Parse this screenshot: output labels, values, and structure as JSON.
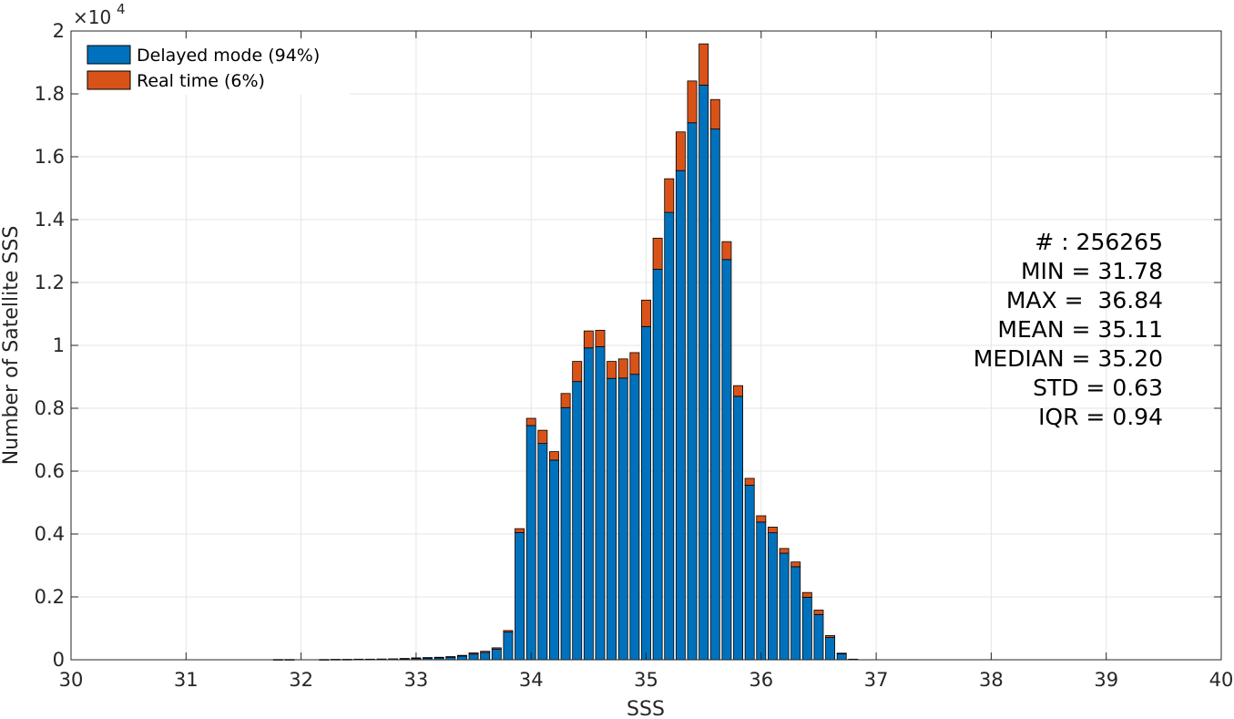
{
  "chart_data": {
    "type": "bar",
    "stacked": true,
    "xlabel": "SSS",
    "ylabel": "Number of Satellite SSS",
    "xlim": [
      30,
      40
    ],
    "ylim": [
      0,
      20000
    ],
    "x_ticks": [
      "30",
      "31",
      "32",
      "33",
      "34",
      "35",
      "36",
      "37",
      "38",
      "39",
      "40"
    ],
    "y_ticks": [
      "0",
      "0.2",
      "0.4",
      "0.6",
      "0.8",
      "1",
      "1.2",
      "1.4",
      "1.6",
      "1.8",
      "2"
    ],
    "y_exponent": {
      "base": "×10",
      "power": "4"
    },
    "grid": true,
    "bin_width": 0.1,
    "legend_position": "top-left",
    "x": [
      31.8,
      31.9,
      32.2,
      32.3,
      32.4,
      32.5,
      32.6,
      32.7,
      32.8,
      32.9,
      33.0,
      33.1,
      33.2,
      33.3,
      33.4,
      33.5,
      33.6,
      33.7,
      33.8,
      33.9,
      34.0,
      34.1,
      34.2,
      34.3,
      34.4,
      34.5,
      34.6,
      34.7,
      34.8,
      34.9,
      35.0,
      35.1,
      35.2,
      35.3,
      35.4,
      35.5,
      35.6,
      35.7,
      35.8,
      35.9,
      36.0,
      36.1,
      36.2,
      36.3,
      36.4,
      36.5,
      36.6,
      36.7,
      36.8
    ],
    "series": [
      {
        "name": "Delayed mode (94%)",
        "color": "#0072BD",
        "values": [
          10,
          10,
          10,
          15,
          15,
          20,
          20,
          25,
          30,
          35,
          50,
          60,
          70,
          90,
          120,
          180,
          230,
          340,
          880,
          4050,
          7450,
          6880,
          6350,
          8020,
          8850,
          9920,
          9960,
          8950,
          8960,
          9080,
          10600,
          12420,
          14230,
          15560,
          17080,
          18280,
          16880,
          12730,
          8380,
          5550,
          4380,
          4040,
          3390,
          2960,
          1990,
          1440,
          710,
          190,
          20
        ]
      },
      {
        "name": "Real time (6%)",
        "color": "#D95319",
        "values": [
          0,
          0,
          0,
          0,
          0,
          0,
          0,
          0,
          0,
          5,
          10,
          10,
          10,
          10,
          20,
          40,
          40,
          40,
          50,
          120,
          230,
          420,
          270,
          450,
          640,
          540,
          520,
          540,
          610,
          690,
          840,
          990,
          1070,
          1230,
          1330,
          1310,
          940,
          570,
          340,
          220,
          200,
          180,
          150,
          150,
          150,
          140,
          60,
          20,
          0
        ]
      }
    ],
    "annotations": [
      "# : 256265",
      "MIN = 31.78",
      "MAX =  36.84",
      "MEAN = 35.11",
      "MEDIAN = 35.20",
      "STD = 0.63",
      "IQR = 0.94"
    ]
  },
  "colors": {
    "background": "#ffffff",
    "grid": "#e6e6e6",
    "axis": "#262626",
    "bar_edge": "#000000"
  }
}
